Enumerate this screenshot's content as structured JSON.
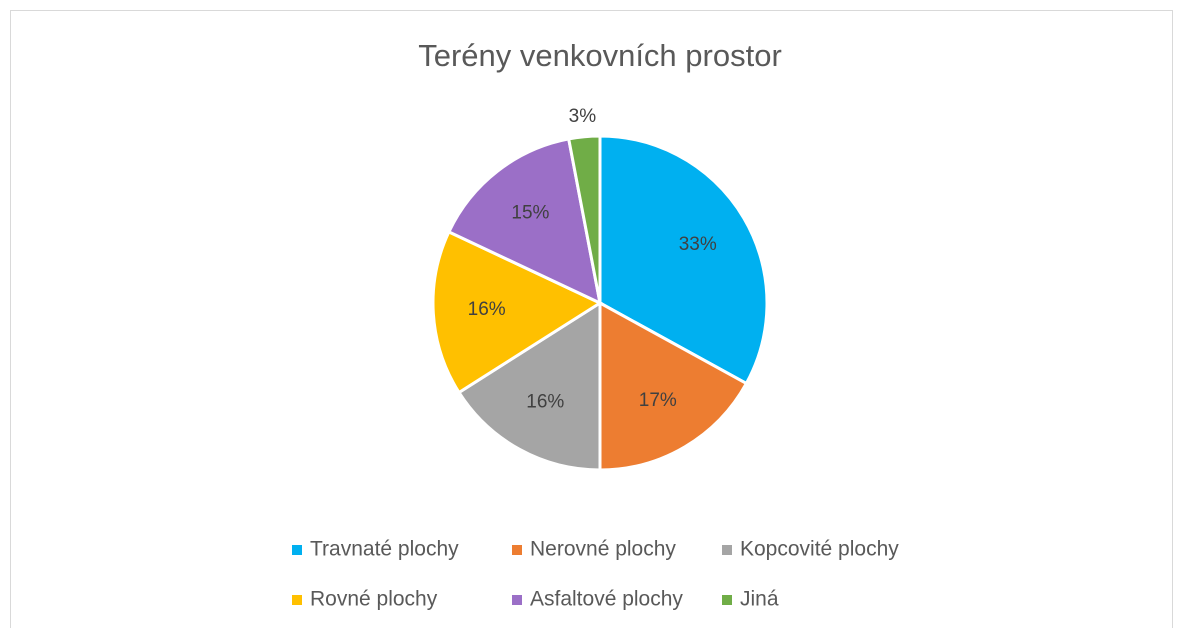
{
  "chart_data": {
    "type": "pie",
    "title": "Terény venkovních prostor",
    "categories": [
      "Travnaté plochy",
      "Nerovné plochy",
      "Kopcovité plochy",
      "Rovné plochy",
      "Asfaltové plochy",
      "Jiná"
    ],
    "values": [
      33,
      17,
      16,
      16,
      15,
      3
    ],
    "value_labels": [
      "33%",
      "17%",
      "16%",
      "16%",
      "15%",
      "3%"
    ],
    "colors": [
      "#00b0f0",
      "#ed7d31",
      "#a5a5a5",
      "#ffc000",
      "#9b6fc7",
      "#70ad47"
    ],
    "legend": "bottom"
  }
}
